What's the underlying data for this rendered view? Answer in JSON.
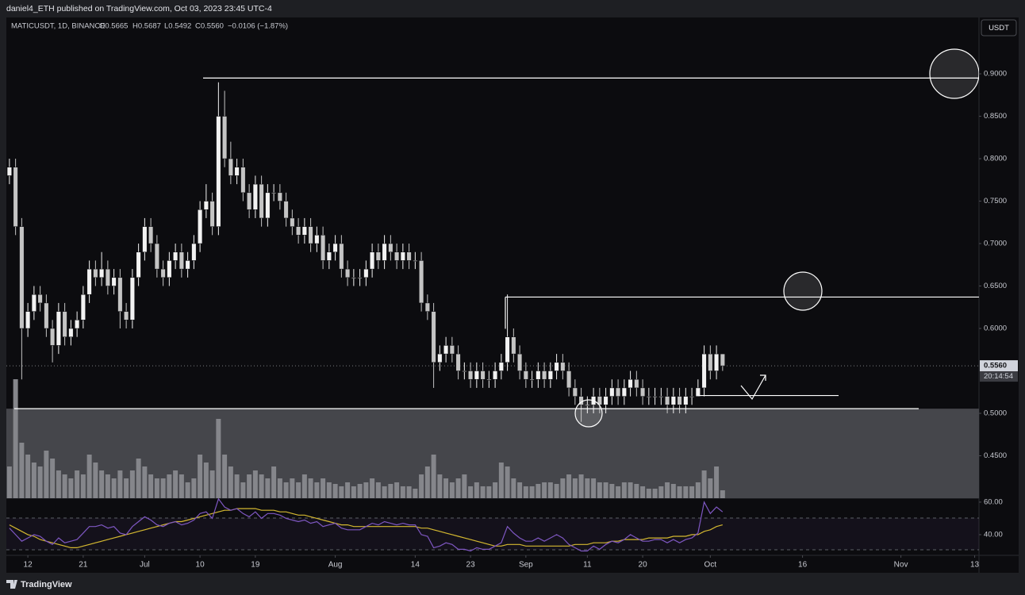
{
  "chart_data": {
    "type": "candlestick",
    "title": "daniel4_ETH published on TradingView.com, Oct 03, 2023 23:45 UTC-4",
    "symbol": "MATICUSDT, 1D, BINANCE",
    "ohlc_labels": [
      "O0.5665",
      "H0.5687",
      "L0.5492",
      "C0.5560",
      "−0.0106 (−1.87%)"
    ],
    "currency": "USDT",
    "footer": "TradingView",
    "up_color": "#f2f2f2",
    "down_color": "#c4c4c4",
    "volume_color": "#85868b",
    "rsi_color": "#7e57c2",
    "rsi_ma_color": "#d4b830",
    "level_color": "#ffffff",
    "zone_color": "#45464b",
    "xlim": [
      -0.5,
      157.7
    ],
    "xticks": [
      {
        "value": 3,
        "label": "12"
      },
      {
        "value": 12,
        "label": "21"
      },
      {
        "value": 22,
        "label": "Jul"
      },
      {
        "value": 31,
        "label": "10"
      },
      {
        "value": 40,
        "label": "19"
      },
      {
        "value": 53,
        "label": "Aug"
      },
      {
        "value": 66,
        "label": "14"
      },
      {
        "value": 75,
        "label": "23"
      },
      {
        "value": 84,
        "label": "Sep"
      },
      {
        "value": 94,
        "label": "11"
      },
      {
        "value": 103,
        "label": "20"
      },
      {
        "value": 114,
        "label": "Oct"
      },
      {
        "value": 129,
        "label": "16"
      },
      {
        "value": 145,
        "label": "Nov"
      },
      {
        "value": 157,
        "label": "13"
      }
    ],
    "ylim": [
      0.4,
      0.9664
    ],
    "yticks": [
      {
        "value": 0.9,
        "label": "0.9000"
      },
      {
        "value": 0.85,
        "label": "0.8500"
      },
      {
        "value": 0.8,
        "label": "0.8000"
      },
      {
        "value": 0.75,
        "label": "0.7500"
      },
      {
        "value": 0.7,
        "label": "0.7000"
      },
      {
        "value": 0.65,
        "label": "0.6500"
      },
      {
        "value": 0.6,
        "label": "0.6000"
      },
      {
        "value": 0.5,
        "label": "0.5000"
      },
      {
        "value": 0.45,
        "label": "0.4500"
      }
    ],
    "last_price": {
      "value": 0.556,
      "label": "0.5560"
    },
    "countdown": "20:14:54",
    "levels": [
      0.895,
      0.637,
      0.5055,
      0.521
    ],
    "rsi_lim": [
      27.3,
      62.4
    ],
    "rsi_ticks": [
      {
        "value": 60,
        "label": "60.00"
      },
      {
        "value": 40,
        "label": "40.00"
      }
    ],
    "open": [
      0.78,
      0.79,
      0.72,
      0.6,
      0.62,
      0.64,
      0.63,
      0.6,
      0.58,
      0.62,
      0.59,
      0.6,
      0.61,
      0.64,
      0.67,
      0.66,
      0.67,
      0.65,
      0.66,
      0.62,
      0.61,
      0.66,
      0.69,
      0.72,
      0.7,
      0.67,
      0.66,
      0.68,
      0.69,
      0.67,
      0.68,
      0.7,
      0.74,
      0.75,
      0.72,
      0.85,
      0.8,
      0.78,
      0.79,
      0.76,
      0.74,
      0.77,
      0.73,
      0.76,
      0.76,
      0.75,
      0.73,
      0.72,
      0.71,
      0.72,
      0.7,
      0.71,
      0.68,
      0.69,
      0.7,
      0.67,
      0.66,
      0.66,
      0.66,
      0.67,
      0.69,
      0.68,
      0.7,
      0.69,
      0.68,
      0.69,
      0.68,
      0.68,
      0.63,
      0.62,
      0.56,
      0.57,
      0.58,
      0.57,
      0.55,
      0.55,
      0.54,
      0.55,
      0.54,
      0.54,
      0.55,
      0.56,
      0.59,
      0.57,
      0.55,
      0.54,
      0.54,
      0.55,
      0.54,
      0.55,
      0.56,
      0.55,
      0.53,
      0.52,
      0.51,
      0.51,
      0.52,
      0.51,
      0.52,
      0.53,
      0.52,
      0.53,
      0.54,
      0.53,
      0.52,
      0.52,
      0.52,
      0.52,
      0.51,
      0.52,
      0.51,
      0.52,
      0.52,
      0.53,
      0.57,
      0.55,
      0.57
    ],
    "high": [
      0.8,
      0.8,
      0.73,
      0.63,
      0.65,
      0.65,
      0.64,
      0.61,
      0.63,
      0.63,
      0.61,
      0.62,
      0.65,
      0.68,
      0.68,
      0.69,
      0.68,
      0.67,
      0.67,
      0.63,
      0.67,
      0.7,
      0.73,
      0.73,
      0.71,
      0.68,
      0.69,
      0.7,
      0.7,
      0.69,
      0.71,
      0.75,
      0.77,
      0.76,
      0.89,
      0.88,
      0.82,
      0.8,
      0.8,
      0.77,
      0.78,
      0.78,
      0.77,
      0.77,
      0.77,
      0.76,
      0.74,
      0.73,
      0.73,
      0.73,
      0.72,
      0.72,
      0.7,
      0.71,
      0.71,
      0.68,
      0.67,
      0.67,
      0.68,
      0.7,
      0.7,
      0.71,
      0.71,
      0.7,
      0.7,
      0.7,
      0.69,
      0.69,
      0.64,
      0.63,
      0.58,
      0.59,
      0.59,
      0.58,
      0.56,
      0.56,
      0.56,
      0.56,
      0.55,
      0.56,
      0.57,
      0.64,
      0.6,
      0.58,
      0.56,
      0.55,
      0.56,
      0.56,
      0.56,
      0.57,
      0.57,
      0.56,
      0.54,
      0.53,
      0.52,
      0.53,
      0.53,
      0.53,
      0.54,
      0.54,
      0.54,
      0.55,
      0.55,
      0.54,
      0.53,
      0.53,
      0.53,
      0.53,
      0.53,
      0.53,
      0.53,
      0.53,
      0.54,
      0.58,
      0.58,
      0.58,
      0.57
    ],
    "low": [
      0.77,
      0.71,
      0.54,
      0.59,
      0.61,
      0.62,
      0.59,
      0.56,
      0.57,
      0.58,
      0.58,
      0.59,
      0.6,
      0.63,
      0.65,
      0.65,
      0.64,
      0.64,
      0.6,
      0.6,
      0.6,
      0.65,
      0.68,
      0.69,
      0.66,
      0.65,
      0.65,
      0.67,
      0.66,
      0.66,
      0.67,
      0.69,
      0.73,
      0.71,
      0.71,
      0.79,
      0.77,
      0.77,
      0.75,
      0.73,
      0.73,
      0.72,
      0.72,
      0.75,
      0.74,
      0.72,
      0.71,
      0.7,
      0.7,
      0.69,
      0.69,
      0.67,
      0.67,
      0.68,
      0.66,
      0.65,
      0.65,
      0.65,
      0.65,
      0.66,
      0.67,
      0.67,
      0.68,
      0.67,
      0.67,
      0.67,
      0.67,
      0.62,
      0.61,
      0.53,
      0.55,
      0.56,
      0.56,
      0.54,
      0.54,
      0.53,
      0.53,
      0.53,
      0.53,
      0.53,
      0.54,
      0.55,
      0.56,
      0.54,
      0.53,
      0.53,
      0.53,
      0.53,
      0.53,
      0.54,
      0.54,
      0.52,
      0.51,
      0.49,
      0.5,
      0.5,
      0.5,
      0.5,
      0.51,
      0.51,
      0.51,
      0.52,
      0.52,
      0.51,
      0.51,
      0.51,
      0.51,
      0.5,
      0.5,
      0.5,
      0.5,
      0.51,
      0.52,
      0.52,
      0.54,
      0.54,
      0.55
    ],
    "close": [
      0.79,
      0.72,
      0.6,
      0.62,
      0.64,
      0.63,
      0.6,
      0.58,
      0.62,
      0.59,
      0.6,
      0.61,
      0.64,
      0.67,
      0.66,
      0.67,
      0.65,
      0.66,
      0.62,
      0.61,
      0.66,
      0.69,
      0.72,
      0.7,
      0.67,
      0.66,
      0.68,
      0.69,
      0.67,
      0.68,
      0.7,
      0.74,
      0.75,
      0.72,
      0.85,
      0.8,
      0.78,
      0.79,
      0.76,
      0.74,
      0.77,
      0.73,
      0.76,
      0.76,
      0.75,
      0.73,
      0.72,
      0.71,
      0.72,
      0.7,
      0.71,
      0.68,
      0.69,
      0.7,
      0.67,
      0.66,
      0.66,
      0.66,
      0.67,
      0.69,
      0.68,
      0.7,
      0.69,
      0.68,
      0.69,
      0.68,
      0.68,
      0.63,
      0.62,
      0.56,
      0.57,
      0.58,
      0.57,
      0.55,
      0.55,
      0.54,
      0.55,
      0.54,
      0.54,
      0.55,
      0.56,
      0.59,
      0.57,
      0.55,
      0.54,
      0.54,
      0.55,
      0.54,
      0.55,
      0.56,
      0.55,
      0.53,
      0.52,
      0.51,
      0.51,
      0.52,
      0.51,
      0.52,
      0.53,
      0.52,
      0.53,
      0.54,
      0.53,
      0.52,
      0.52,
      0.52,
      0.52,
      0.51,
      0.52,
      0.51,
      0.52,
      0.52,
      0.53,
      0.57,
      0.55,
      0.57,
      0.556
    ],
    "volume": [
      40,
      150,
      70,
      55,
      45,
      40,
      60,
      50,
      35,
      30,
      25,
      35,
      30,
      55,
      45,
      35,
      30,
      25,
      35,
      25,
      35,
      50,
      40,
      30,
      25,
      25,
      30,
      35,
      30,
      20,
      25,
      55,
      45,
      35,
      100,
      55,
      40,
      30,
      20,
      30,
      35,
      30,
      25,
      40,
      25,
      20,
      25,
      20,
      30,
      25,
      20,
      25,
      20,
      18,
      15,
      20,
      15,
      18,
      20,
      25,
      20,
      15,
      18,
      20,
      15,
      15,
      12,
      30,
      40,
      55,
      30,
      25,
      20,
      25,
      30,
      15,
      20,
      15,
      15,
      20,
      45,
      40,
      25,
      20,
      15,
      15,
      18,
      20,
      20,
      18,
      25,
      30,
      25,
      30,
      25,
      25,
      20,
      20,
      18,
      15,
      20,
      20,
      18,
      15,
      12,
      12,
      15,
      20,
      18,
      15,
      15,
      15,
      20,
      35,
      25,
      40,
      10
    ],
    "rsi": [
      44,
      40,
      36,
      38,
      40,
      39,
      36,
      34,
      38,
      35,
      36,
      37,
      41,
      45,
      45,
      46,
      44,
      45,
      41,
      40,
      45,
      48,
      51,
      49,
      46,
      45,
      47,
      48,
      46,
      47,
      49,
      53,
      54,
      50,
      62,
      57,
      55,
      56,
      53,
      51,
      54,
      50,
      53,
      53,
      52,
      50,
      49,
      48,
      49,
      47,
      48,
      45,
      46,
      47,
      44,
      43,
      43,
      43,
      45,
      47,
      46,
      48,
      47,
      46,
      47,
      46,
      46,
      40,
      39,
      32,
      33,
      35,
      34,
      31,
      31,
      30,
      32,
      31,
      31,
      33,
      35,
      45,
      41,
      38,
      36,
      36,
      38,
      36,
      38,
      40,
      38,
      34,
      32,
      30,
      30,
      33,
      31,
      34,
      36,
      35,
      37,
      40,
      38,
      36,
      36,
      37,
      37,
      35,
      37,
      35,
      37,
      38,
      41,
      60,
      53,
      57,
      54
    ],
    "rsi_ma": [
      46,
      44,
      42,
      40,
      39,
      37,
      36,
      35,
      34,
      33,
      32,
      32,
      33,
      34,
      35,
      36,
      37,
      38,
      39,
      40,
      41,
      42,
      43,
      44,
      45,
      46,
      47,
      48,
      48,
      49,
      50,
      51,
      52,
      53,
      54,
      55,
      55,
      56,
      56,
      56,
      56,
      55,
      55,
      55,
      54,
      54,
      53,
      52,
      52,
      51,
      50,
      49,
      48,
      47,
      46,
      46,
      45,
      45,
      45,
      45,
      45,
      45,
      45,
      45,
      45,
      45,
      45,
      44,
      44,
      43,
      42,
      41,
      40,
      39,
      38,
      37,
      36,
      35,
      34,
      33,
      33,
      34,
      34,
      34,
      33,
      33,
      33,
      33,
      33,
      33,
      33,
      33,
      34,
      34,
      34,
      35,
      35,
      35,
      36,
      36,
      37,
      37,
      37,
      37,
      38,
      38,
      38,
      38,
      39,
      39,
      39,
      40,
      40,
      42,
      43,
      45,
      46
    ]
  }
}
